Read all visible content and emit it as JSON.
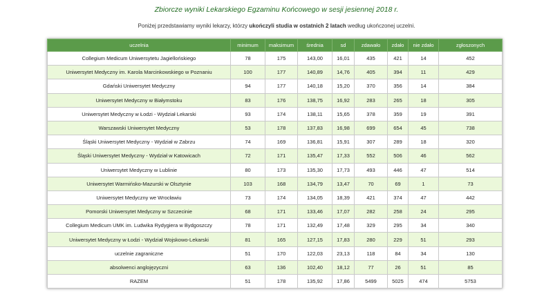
{
  "header": {
    "title": "Zbiorcze wyniki Lekarskiego Egzaminu Końcowego w sesji jesiennej 2018 r.",
    "subtitle": {
      "before": "Poniżej przedstawiamy wyniki lekarzy, którzy ",
      "bold": "ukończyli studia w ostatnich 2 latach",
      "after": " według ukończonej uczelni."
    }
  },
  "table": {
    "columns": [
      "uczelnia",
      "minimum",
      "maksimum",
      "średnia",
      "sd",
      "zdawało",
      "zdało",
      "nie zdało",
      "zgłoszonych"
    ],
    "rows": [
      [
        "Collegium Medicum Uniwersytetu Jagiellońskiego",
        "78",
        "175",
        "143,00",
        "16,01",
        "435",
        "421",
        "14",
        "452"
      ],
      [
        "Uniwersytet Medyczny im. Karola Marcinkowskiego w Poznaniu",
        "100",
        "177",
        "140,89",
        "14,76",
        "405",
        "394",
        "11",
        "429"
      ],
      [
        "Gdański Uniwersytet Medyczny",
        "94",
        "177",
        "140,18",
        "15,20",
        "370",
        "356",
        "14",
        "384"
      ],
      [
        "Uniwersytet Medyczny w Białymstoku",
        "83",
        "176",
        "138,75",
        "16,92",
        "283",
        "265",
        "18",
        "305"
      ],
      [
        "Uniwersytet Medyczny w Łodzi - Wydział Lekarski",
        "93",
        "174",
        "138,11",
        "15,65",
        "378",
        "359",
        "19",
        "391"
      ],
      [
        "Warszawski Uniwersytet Medyczny",
        "53",
        "178",
        "137,83",
        "16,98",
        "699",
        "654",
        "45",
        "738"
      ],
      [
        "Śląski Uniwersytet Medyczny - Wydział w Zabrzu",
        "74",
        "169",
        "136,81",
        "15,91",
        "307",
        "289",
        "18",
        "320"
      ],
      [
        "Śląski Uniwersytet Medyczny - Wydział w Katowicach",
        "72",
        "171",
        "135,47",
        "17,33",
        "552",
        "506",
        "46",
        "562"
      ],
      [
        "Uniwersytet Medyczny w Lublinie",
        "80",
        "173",
        "135,30",
        "17,73",
        "493",
        "446",
        "47",
        "514"
      ],
      [
        "Uniwersytet Warmińsko-Mazurski w Olsztynie",
        "103",
        "168",
        "134,79",
        "13,47",
        "70",
        "69",
        "1",
        "73"
      ],
      [
        "Uniwersytet Medyczny we Wrocławiu",
        "73",
        "174",
        "134,05",
        "18,39",
        "421",
        "374",
        "47",
        "442"
      ],
      [
        "Pomorski Uniwersytet Medyczny w Szczecinie",
        "68",
        "171",
        "133,46",
        "17,07",
        "282",
        "258",
        "24",
        "295"
      ],
      [
        "Collegium Medicum UMK im. Ludwika Rydygiera w Bydgoszczy",
        "78",
        "171",
        "132,49",
        "17,48",
        "329",
        "295",
        "34",
        "340"
      ],
      [
        "Uniwersytet Medyczny w Łodzi - Wydział Wojskowo-Lekarski",
        "81",
        "165",
        "127,15",
        "17,83",
        "280",
        "229",
        "51",
        "293"
      ],
      [
        "uczelnie zagraniczne",
        "51",
        "170",
        "122,03",
        "23,13",
        "118",
        "84",
        "34",
        "130"
      ],
      [
        "absolwenci anglojęzyczni",
        "63",
        "136",
        "102,40",
        "18,12",
        "77",
        "26",
        "51",
        "85"
      ],
      [
        "RAZEM",
        "51",
        "178",
        "135,92",
        "17,86",
        "5499",
        "5025",
        "474",
        "5753"
      ]
    ]
  }
}
